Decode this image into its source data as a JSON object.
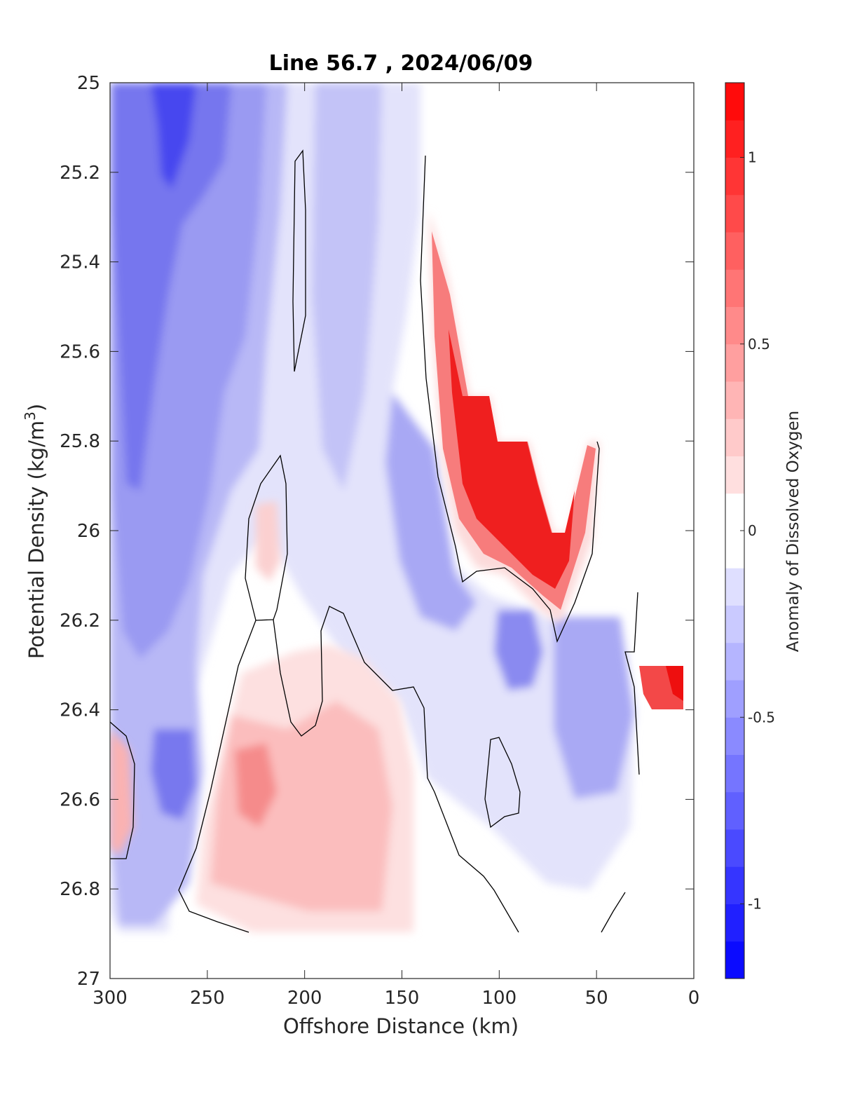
{
  "chart_data": {
    "type": "heatmap",
    "subtype": "filled-contour",
    "title": "Line 56.7 , 2024/06/09",
    "xlabel": "Offshore Distance (km)",
    "ylabel_main": "Potential Density (kg/m",
    "ylabel_sup": "3",
    "ylabel_close": ")",
    "xlim": [
      300,
      0
    ],
    "ylim": [
      25,
      27
    ],
    "y_reversed": true,
    "x_reversed": true,
    "xticks": [
      300,
      250,
      200,
      150,
      100,
      50,
      0
    ],
    "yticks": [
      25,
      25.2,
      25.4,
      25.6,
      25.8,
      26,
      26.2,
      26.4,
      26.6,
      26.8,
      27
    ],
    "ytick_labels": [
      "25",
      "25.2",
      "25.4",
      "25.6",
      "25.8",
      "26",
      "26.2",
      "26.4",
      "26.6",
      "26.8",
      "27"
    ],
    "colorbar": {
      "label": "Anomaly of Dissolved Oxygen",
      "clim": [
        -1.2,
        1.2
      ],
      "ticks": [
        1,
        0.5,
        0,
        -0.5,
        -1
      ],
      "tick_labels": [
        "1",
        "0.5",
        "0",
        "-0.5",
        "-1"
      ],
      "levels": 24,
      "colormap": "blue-white-red",
      "neg_color": "#0000ff",
      "pos_color": "#ff0000",
      "mid_color": "#ffffff"
    },
    "grid": false,
    "regions": [
      {
        "name": "offshore-deep-negative",
        "x_range": [
          300,
          250
        ],
        "y_range": [
          25,
          26.9
        ],
        "peak_value": -0.8
      },
      {
        "name": "upper-negative-core",
        "x_range": [
          280,
          255
        ],
        "y_range": [
          25,
          25.3
        ],
        "peak_value": -1.05
      },
      {
        "name": "band-negative-190-170",
        "x_range": [
          190,
          165
        ],
        "y_range": [
          25,
          26.1
        ],
        "peak_value": -0.5
      },
      {
        "name": "positive-nearshore-upper",
        "x_range": [
          135,
          48
        ],
        "y_range": [
          25.3,
          26.25
        ],
        "peak_value": 1.1
      },
      {
        "name": "positive-subsurface-offshore",
        "x_range": [
          250,
          140
        ],
        "y_range": [
          26.25,
          26.9
        ],
        "peak_value": 0.5
      },
      {
        "name": "negative-core-90km",
        "x_range": [
          100,
          80
        ],
        "y_range": [
          26.2,
          26.4
        ],
        "peak_value": -0.55
      },
      {
        "name": "negative-core-55km",
        "x_range": [
          70,
          45
        ],
        "y_range": [
          26.3,
          26.5
        ],
        "peak_value": -0.65
      },
      {
        "name": "positive-nearshore-deep",
        "x_range": [
          25,
          5
        ],
        "y_range": [
          26.3,
          26.4
        ],
        "peak_value": 1.0
      },
      {
        "name": "positive-offshore-edge",
        "x_range": [
          300,
          290
        ],
        "y_range": [
          26.5,
          26.7
        ],
        "peak_value": 0.3
      }
    ]
  }
}
